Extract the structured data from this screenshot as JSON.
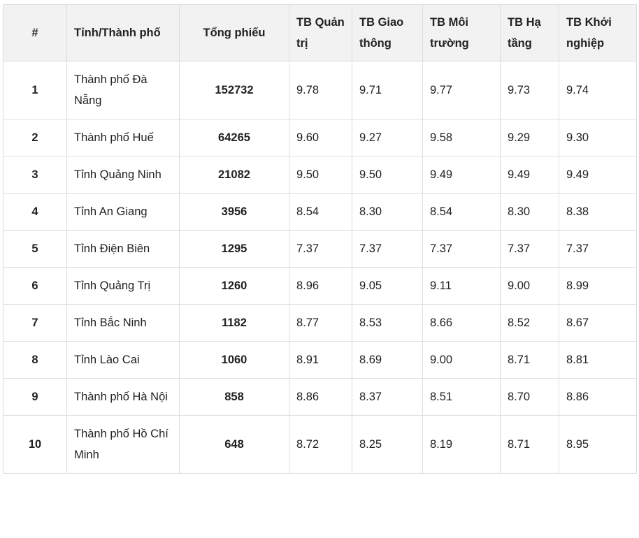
{
  "table": {
    "headers": [
      "#",
      "Tỉnh/Thành phố",
      "Tổng phiếu",
      "TB Quản trị",
      "TB Giao thông",
      "TB Môi trường",
      "TB Hạ tầng",
      "TB Khởi nghiệp"
    ],
    "rows": [
      [
        "1",
        "Thành phố Đà Nẵng",
        "152732",
        "9.78",
        "9.71",
        "9.77",
        "9.73",
        "9.74"
      ],
      [
        "2",
        "Thành phố Huế",
        "64265",
        "9.60",
        "9.27",
        "9.58",
        "9.29",
        "9.30"
      ],
      [
        "3",
        "Tỉnh Quảng Ninh",
        "21082",
        "9.50",
        "9.50",
        "9.49",
        "9.49",
        "9.49"
      ],
      [
        "4",
        "Tỉnh An Giang",
        "3956",
        "8.54",
        "8.30",
        "8.54",
        "8.30",
        "8.38"
      ],
      [
        "5",
        "Tỉnh Điện Biên",
        "1295",
        "7.37",
        "7.37",
        "7.37",
        "7.37",
        "7.37"
      ],
      [
        "6",
        "Tỉnh Quảng Trị",
        "1260",
        "8.96",
        "9.05",
        "9.11",
        "9.00",
        "8.99"
      ],
      [
        "7",
        "Tỉnh Bắc Ninh",
        "1182",
        "8.77",
        "8.53",
        "8.66",
        "8.52",
        "8.67"
      ],
      [
        "8",
        "Tỉnh Lào Cai",
        "1060",
        "8.91",
        "8.69",
        "9.00",
        "8.71",
        "8.81"
      ],
      [
        "9",
        "Thành phố Hà Nội",
        "858",
        "8.86",
        "8.37",
        "8.51",
        "8.70",
        "8.86"
      ],
      [
        "10",
        "Thành phố Hồ Chí Minh",
        "648",
        "8.72",
        "8.25",
        "8.19",
        "8.71",
        "8.95"
      ]
    ]
  }
}
